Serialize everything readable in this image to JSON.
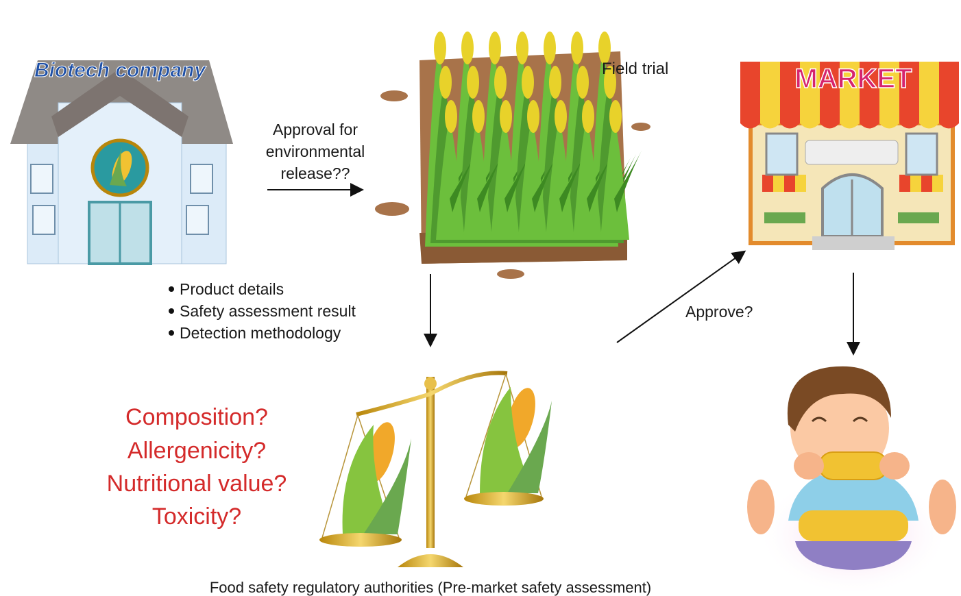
{
  "company": {
    "label": "Biotech company"
  },
  "field_trial": {
    "label": "Field trial"
  },
  "market": {
    "label": "MARKET"
  },
  "release_question": [
    "Approval for",
    "environmental",
    "release??"
  ],
  "submission": [
    "Product details",
    "Safety assessment result",
    "Detection methodology"
  ],
  "assessment_questions": [
    "Composition?",
    "Allergenicity?",
    "Nutritional value?",
    "Toxicity?"
  ],
  "approve_question": "Approve?",
  "authority": "Food safety regulatory authorities (Pre-market safety assessment)"
}
